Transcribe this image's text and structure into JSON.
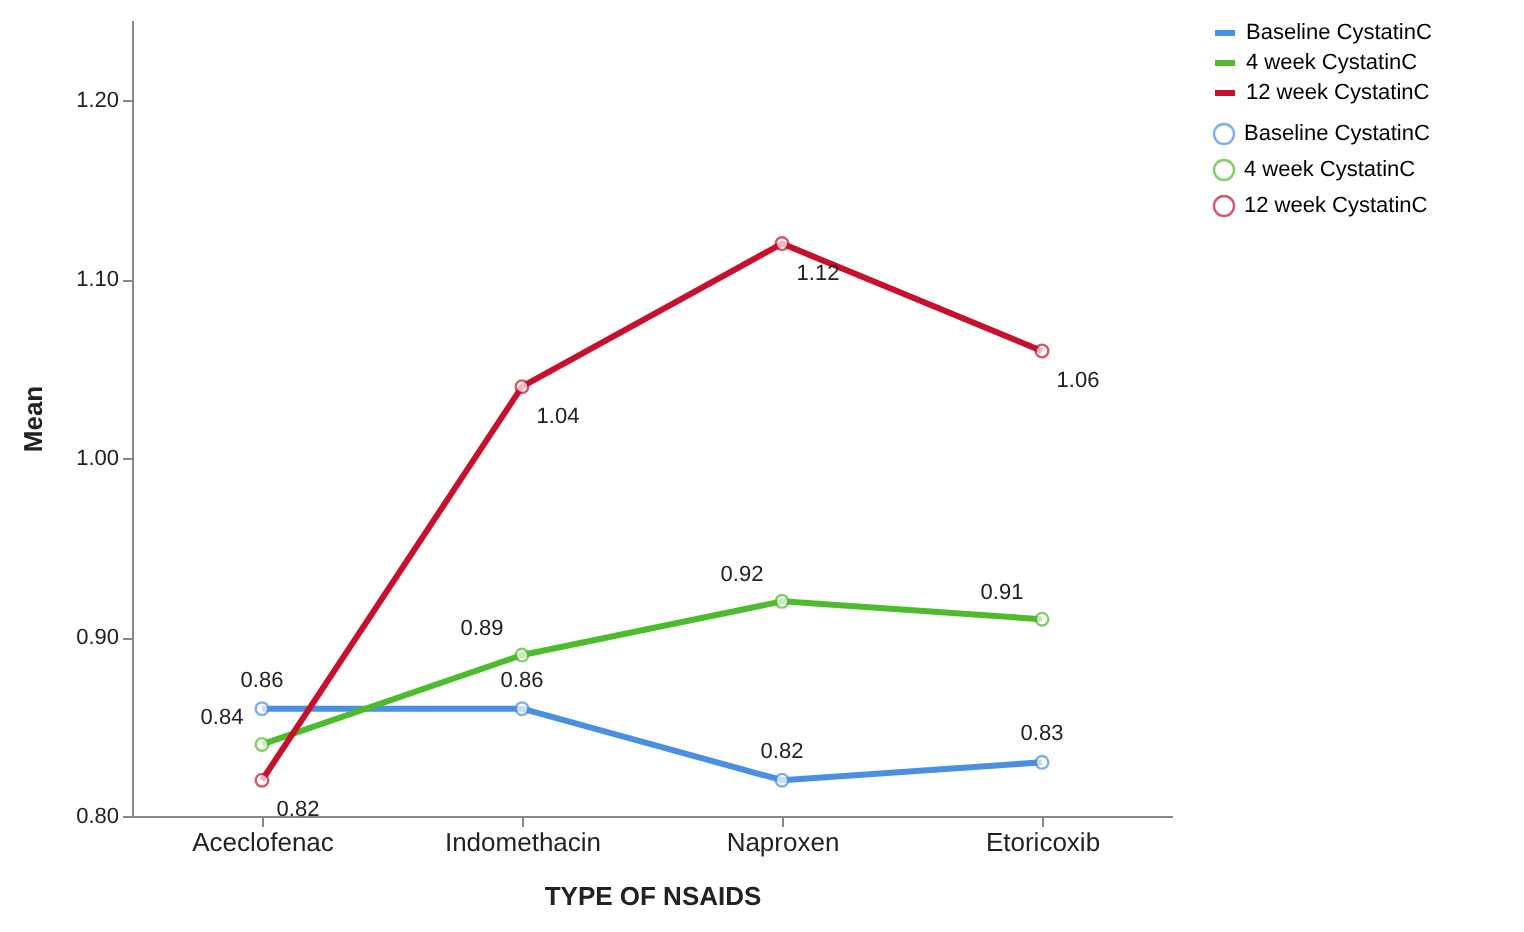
{
  "chart_data": {
    "type": "line",
    "xlabel": "TYPE OF NSAIDS",
    "ylabel": "Mean",
    "categories": [
      "Aceclofenac",
      "Indomethacin",
      "Naproxen",
      "Etoricoxib"
    ],
    "series": [
      {
        "name": "Baseline CystatinC",
        "color": "#4a90e2",
        "values": [
          0.86,
          0.86,
          0.82,
          0.83
        ]
      },
      {
        "name": "4 week CystatinC",
        "color": "#4cbb2c",
        "values": [
          0.84,
          0.89,
          0.92,
          0.91
        ]
      },
      {
        "name": "12 week CystatinC",
        "color": "#c8102e",
        "values": [
          0.82,
          1.04,
          1.12,
          1.06
        ]
      }
    ],
    "ylim": [
      0.8,
      1.245
    ],
    "yticks": [
      {
        "value": 0.8,
        "label": "0.80"
      },
      {
        "value": 0.9,
        "label": "0.90"
      },
      {
        "value": 1.0,
        "label": "1.00"
      },
      {
        "value": 1.1,
        "label": "1.10"
      },
      {
        "value": 1.2,
        "label": "1.20"
      }
    ],
    "grid": false,
    "legend": "right",
    "marker": "circle",
    "line_style": "solid",
    "data_labels": true
  }
}
